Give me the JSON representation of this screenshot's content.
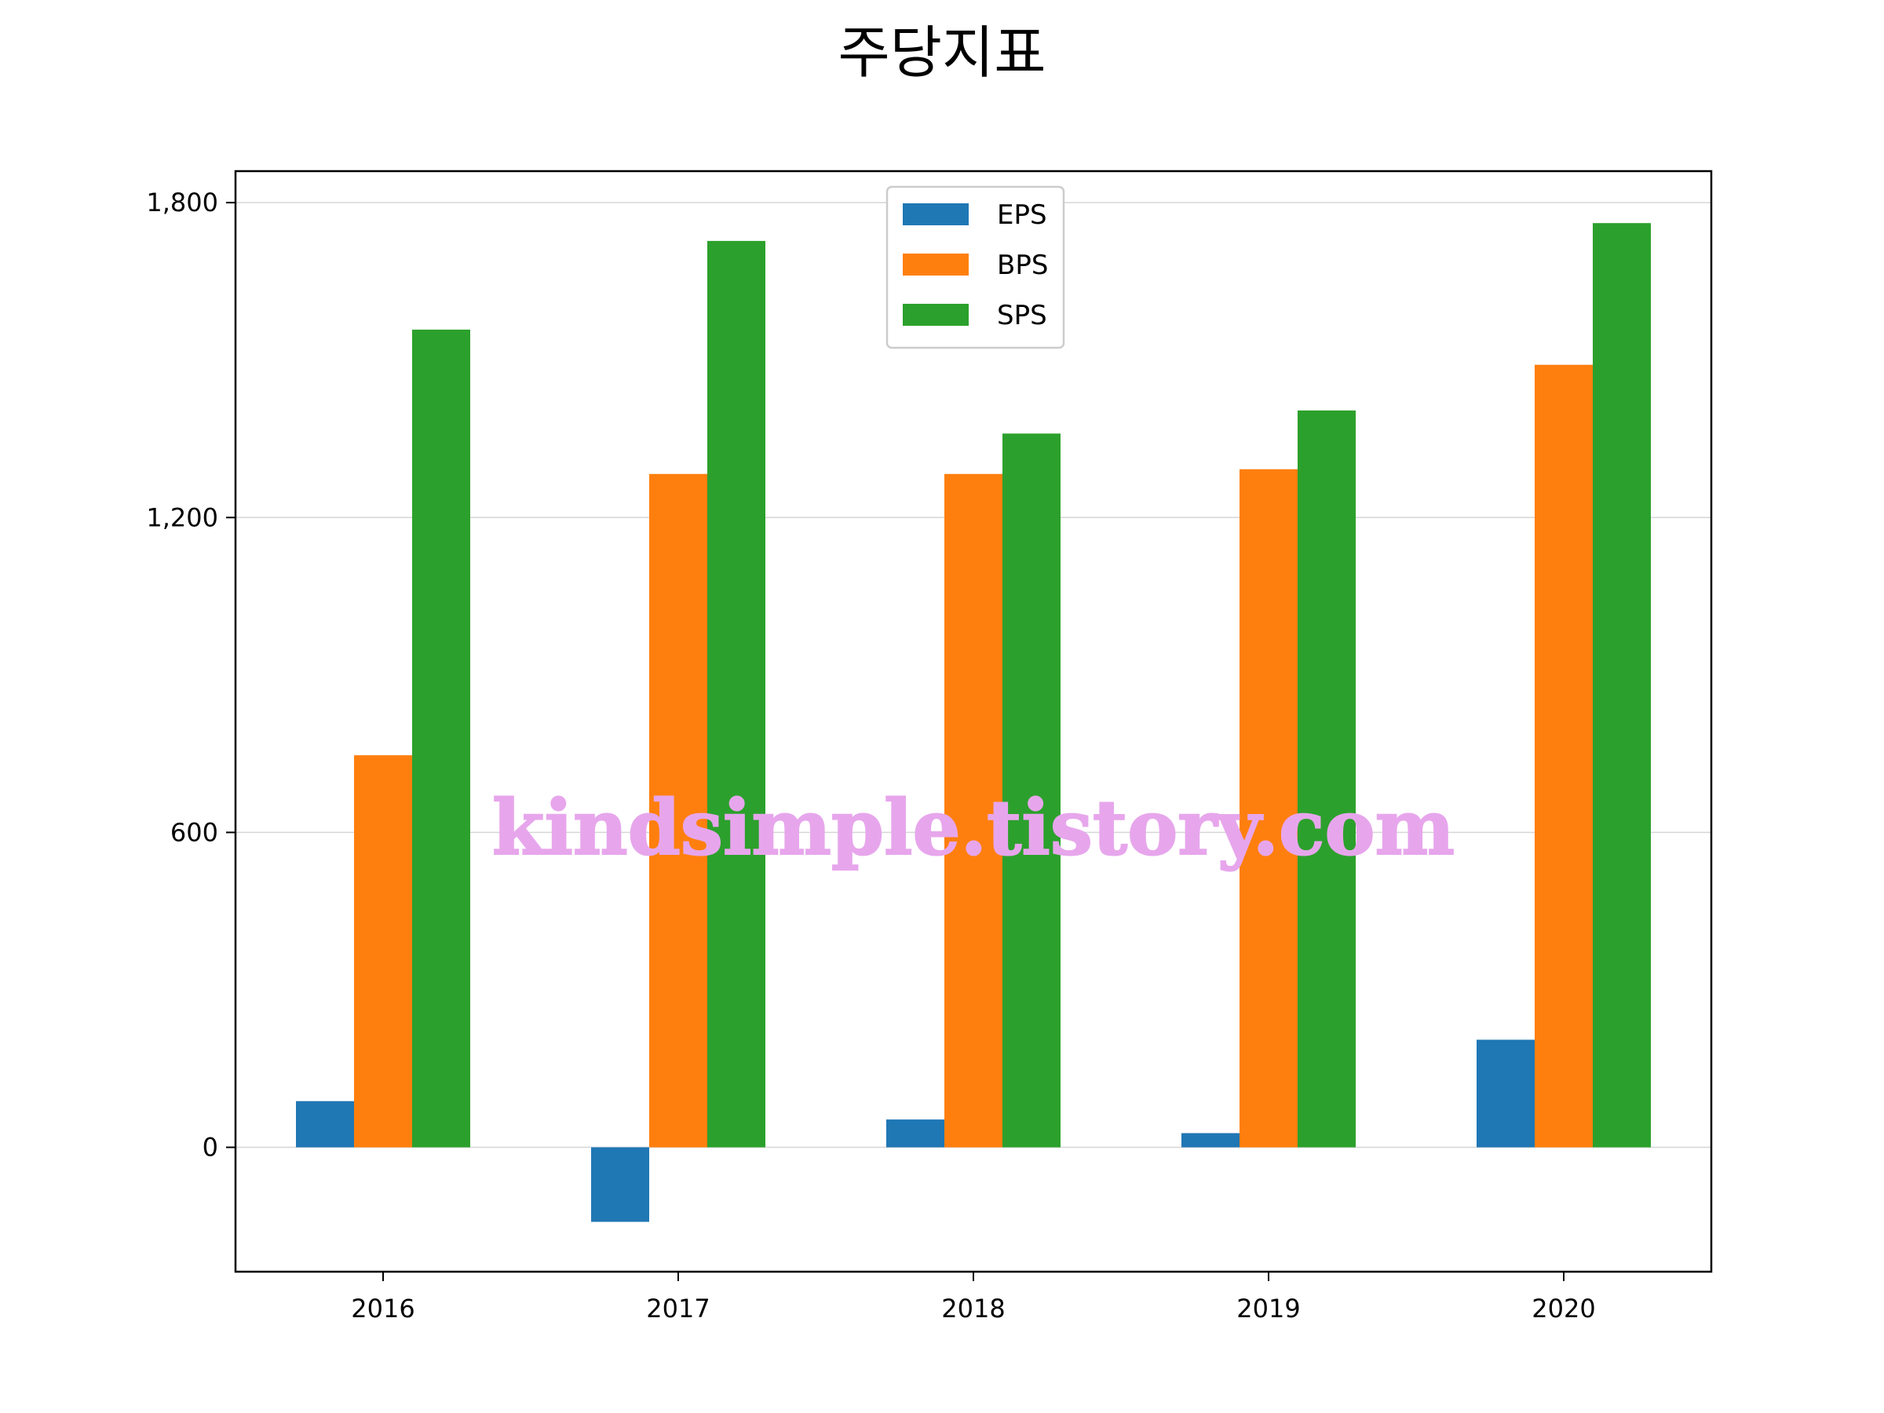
{
  "chart_data": {
    "type": "bar",
    "title": "주당지표",
    "categories": [
      "2016",
      "2017",
      "2018",
      "2019",
      "2020"
    ],
    "series": [
      {
        "name": "EPS",
        "color": "#1f77b4",
        "values": [
          88,
          -142,
          53,
          27,
          205
        ]
      },
      {
        "name": "BPS",
        "color": "#ff7f0e",
        "values": [
          747,
          1283,
          1283,
          1292,
          1491
        ]
      },
      {
        "name": "SPS",
        "color": "#2ca02c",
        "values": [
          1558,
          1727,
          1360,
          1404,
          1761
        ]
      }
    ],
    "xlabel": "",
    "ylabel": "",
    "ylim": [
      -237,
      1860
    ],
    "yticks": [
      0,
      600,
      1200,
      1800
    ],
    "ytick_labels": [
      "0",
      "600",
      "1,200",
      "1,800"
    ],
    "grid": "horizontal",
    "legend_position": "top-center"
  },
  "watermark": "kindsimple.tistory.com"
}
